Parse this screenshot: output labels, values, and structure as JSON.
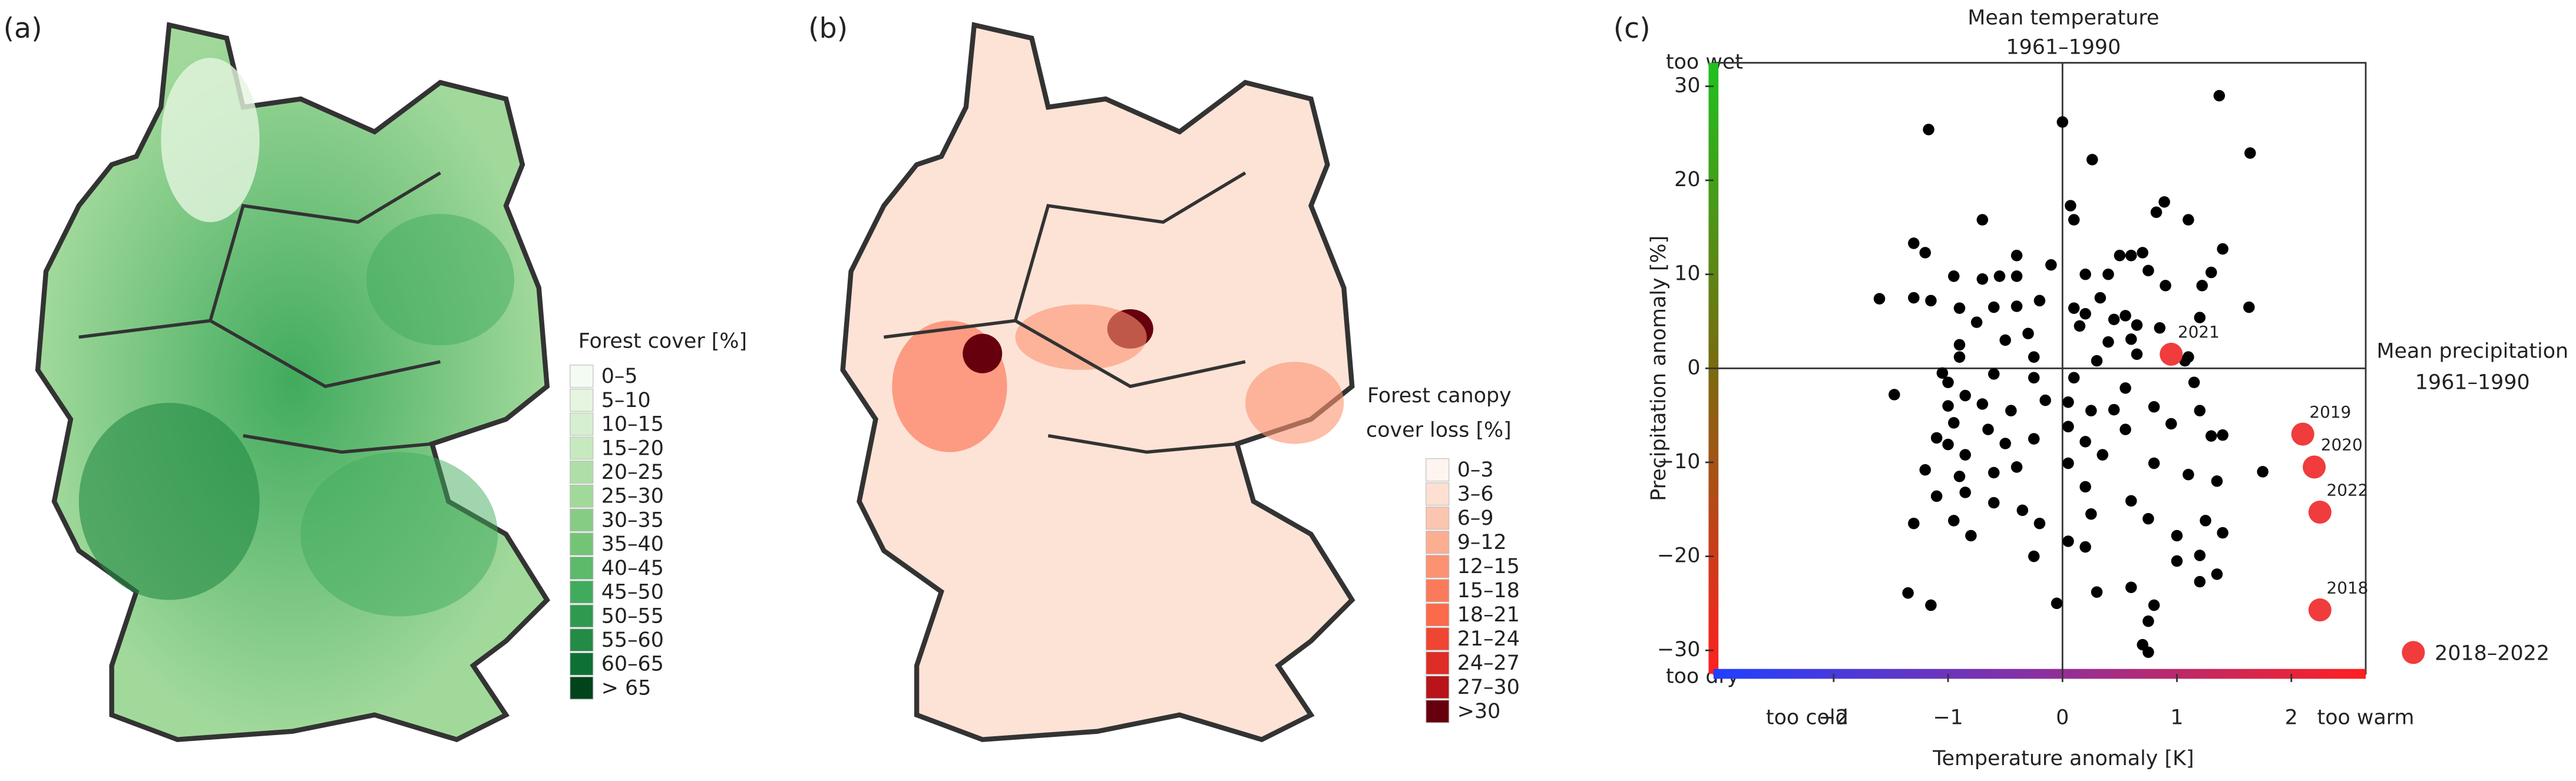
{
  "chart_data": [
    {
      "type": "map",
      "panel_label": "(a)",
      "legend_title": "Forest cover [%]",
      "legend": {
        "labels": [
          "0–5",
          "5–10",
          "10–15",
          "15–20",
          "20–25",
          "25–30",
          "30–35",
          "35–40",
          "40–45",
          "45–50",
          "50–55",
          "55–60",
          "60–65",
          "> 65"
        ],
        "colors": [
          "#f4fbf2",
          "#e5f5e0",
          "#d6efd0",
          "#c7e9c0",
          "#b0dea8",
          "#a1d99b",
          "#86cc85",
          "#74c476",
          "#5db96b",
          "#41ab5d",
          "#2f9950",
          "#238b45",
          "#0f7035",
          "#00441b"
        ]
      }
    },
    {
      "type": "map",
      "panel_label": "(b)",
      "legend_title": [
        "Forest canopy",
        "cover loss [%]"
      ],
      "legend": {
        "labels": [
          "0–3",
          "3–6",
          "6–9",
          "9–12",
          "12–15",
          "15–18",
          "18–21",
          "21–24",
          "24–27",
          "27–30",
          ">30"
        ],
        "colors": [
          "#fff5f0",
          "#fee0d2",
          "#fcc5b0",
          "#fcae91",
          "#fc9272",
          "#fb7a5a",
          "#fb6a4a",
          "#ef4533",
          "#de2d26",
          "#b81419",
          "#67000d"
        ]
      }
    },
    {
      "type": "scatter",
      "panel_label": "(c)",
      "x_label": "Temperature anomaly [K]",
      "y_label": "Precipitation anomaly [%]",
      "annotations": {
        "top": [
          "Mean temperature",
          "1961–1990"
        ],
        "right": [
          "Mean precipitation",
          "1961–1990"
        ],
        "too_wet": "too wet",
        "too_dry": "too dry",
        "too_cold": "too cold",
        "too_warm": "too warm"
      },
      "xlim": [
        -3.05,
        2.65
      ],
      "ylim": [
        -32.5,
        32.5
      ],
      "xticks": [
        {
          "value": -2,
          "label": "−2"
        },
        {
          "value": -1,
          "label": "−1"
        },
        0,
        1,
        2
      ],
      "yticks": [
        {
          "value": -30,
          "label": "−30"
        },
        {
          "value": -20,
          "label": "−20"
        },
        {
          "value": -10,
          "label": "−10"
        },
        0,
        10,
        20,
        30
      ],
      "series": [
        {
          "color": "#000000",
          "x": [
            1.37,
            0,
            -1.17,
            1.64,
            0.26,
            0.89,
            0.07,
            0.82,
            -0.7,
            0.1,
            1.1,
            -1.3,
            -1.2,
            -0.4,
            0.7,
            0.5,
            0.6,
            -0.1,
            1.4,
            1.3,
            0.2,
            0.4,
            0.75,
            -0.55,
            -0.4,
            -0.7,
            -0.95,
            0.9,
            1.22,
            1.63,
            -1.3,
            -1.15,
            -1.6,
            -0.9,
            -0.6,
            -0.4,
            -0.2,
            0.33,
            0.1,
            0.2,
            0.45,
            0.15,
            0.55,
            0.65,
            0.85,
            1.2,
            -0.75,
            -0.5,
            -0.3,
            0.4,
            0.6,
            -0.9,
            1.1,
            -0.9,
            -0.25,
            0.3,
            0.65,
            -1.05,
            -1.47,
            -0.25,
            -0.6,
            0.1,
            0.55,
            1.07,
            1.15,
            1.2,
            1.3,
            1.4,
            1.75,
            -1,
            -0.85,
            -0.7,
            -0.45,
            -0.15,
            0.05,
            0.25,
            0.45,
            0.55,
            0.8,
            0.95,
            -1,
            -0.95,
            -0.65,
            -1.1,
            -1,
            -0.5,
            -0.25,
            0.05,
            0.2,
            0.35,
            -0.85,
            -1.2,
            -0.9,
            -0.6,
            -0.4,
            0.05,
            0.2,
            -1.1,
            -0.85,
            -0.6,
            -0.35,
            0.25,
            0.6,
            0.8,
            1.1,
            1.35,
            1.25,
            1.4,
            -1.3,
            -0.95,
            -0.8,
            -0.2,
            0.75,
            1.0,
            1.2,
            -0.25,
            0.05,
            0.2,
            0.6,
            0.3,
            1.2,
            1.35,
            -1.35,
            -1.15,
            0.8,
            0.75,
            0.7,
            0.75,
            1.0,
            -0.05
          ],
          "y": [
            29,
            26.2,
            25.4,
            22.9,
            22.2,
            17.7,
            17.3,
            16.6,
            15.8,
            15.8,
            15.8,
            13.3,
            12.3,
            12,
            12.3,
            12,
            12,
            11,
            12.7,
            10.2,
            10,
            10,
            10.4,
            9.8,
            9.8,
            9.5,
            9.8,
            8.8,
            8.8,
            6.5,
            7.5,
            7.2,
            7.4,
            6.4,
            6.5,
            6.6,
            7.2,
            7.5,
            6.4,
            5.8,
            5.2,
            4.5,
            5.6,
            4.6,
            4.3,
            5.4,
            4.9,
            3,
            3.7,
            2.8,
            3.1,
            2.5,
            1.2,
            1.2,
            1.2,
            0.8,
            1.5,
            -0.5,
            -2.8,
            -1,
            -0.6,
            -1,
            -2.1,
            0.8,
            -1.5,
            -4.5,
            -7.2,
            -7.1,
            -11,
            -1.5,
            -2.9,
            -3.8,
            -4.5,
            -3.4,
            -3.6,
            -4.5,
            -4.4,
            -6.5,
            -4.1,
            -5.9,
            -4,
            -5.8,
            -6.5,
            -7.4,
            -8.1,
            -8,
            -7.5,
            -6.2,
            -7.8,
            -9.2,
            -9.2,
            -10.8,
            -11.5,
            -11.1,
            -10.5,
            -10.1,
            -12.6,
            -13.6,
            -13.2,
            -14.3,
            -15.1,
            -15.5,
            -14.1,
            -10.1,
            -11.3,
            -12,
            -16.2,
            -17.5,
            -16.5,
            -16.2,
            -17.8,
            -16.5,
            -16,
            -17.8,
            -19.9,
            -20,
            -18.4,
            -19,
            -23.3,
            -23.8,
            -22.7,
            -21.9,
            -23.9,
            -25.2,
            -25.2,
            -26.9,
            -29.4,
            -30.2,
            -20.5,
            -25
          ]
        },
        {
          "name": "2018–2022",
          "color": "#f03c3c",
          "x": [
            2.25,
            2.1,
            2.2,
            0.95,
            2.25
          ],
          "y": [
            -25.7,
            -7,
            -10.5,
            1.5,
            -15.3
          ],
          "point_labels": [
            "2018",
            "2019",
            "2020",
            "2021",
            "2022"
          ]
        }
      ]
    }
  ]
}
